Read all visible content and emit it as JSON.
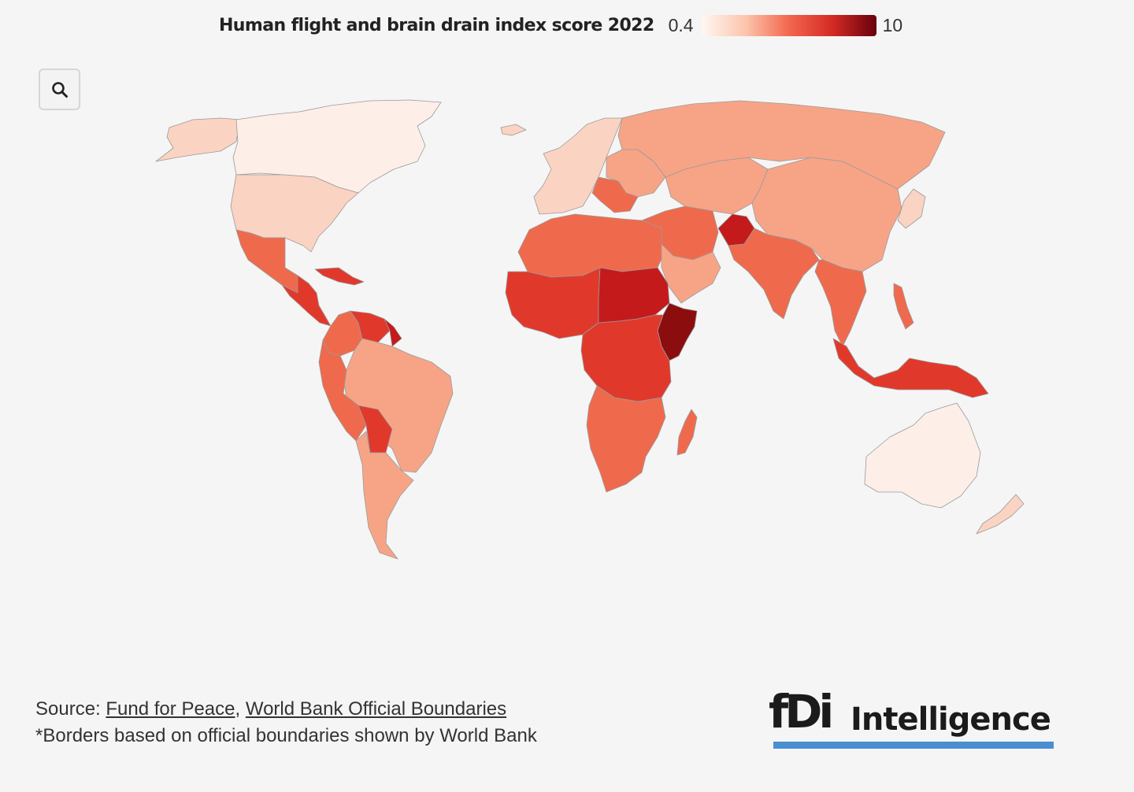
{
  "legend": {
    "title": "Human flight and brain drain index score 2022",
    "min_label": "0.4",
    "max_label": "10",
    "gradient_colors": [
      "#fff7f3",
      "#fcc5ad",
      "#f2674e",
      "#d42a24",
      "#67000d"
    ]
  },
  "zoom_button": {
    "icon": "search-icon"
  },
  "footer": {
    "source_label": "Source: ",
    "link1": "Fund for Peace",
    "separator": ", ",
    "link2": "World Bank Official Boundaries",
    "note": "*Borders based on official boundaries shown by World Bank"
  },
  "logo": {
    "mark": "fDi",
    "word": "Intelligence",
    "accent_color": "#4a8fd0"
  },
  "colors": {
    "background": "#f5f5f5",
    "border": "#9a9a9a",
    "low": "#fdeee8",
    "lowmid": "#fbd3c2",
    "mid": "#f7a486",
    "midhigh": "#ef6a4c",
    "high": "#e0392c",
    "veryhigh": "#c41a1c",
    "max": "#8c0d0e"
  },
  "map_regions": [
    {
      "name": "alaska",
      "level": "lowmid"
    },
    {
      "name": "canada",
      "level": "low"
    },
    {
      "name": "greenland",
      "level": "none"
    },
    {
      "name": "usa",
      "level": "lowmid"
    },
    {
      "name": "mexico",
      "level": "midhigh"
    },
    {
      "name": "central-america",
      "level": "high"
    },
    {
      "name": "caribbean",
      "level": "high"
    },
    {
      "name": "colombia",
      "level": "midhigh"
    },
    {
      "name": "venezuela",
      "level": "high"
    },
    {
      "name": "guyana",
      "level": "veryhigh"
    },
    {
      "name": "brazil",
      "level": "mid"
    },
    {
      "name": "peru-ecuador",
      "level": "midhigh"
    },
    {
      "name": "bolivia",
      "level": "high"
    },
    {
      "name": "southern-cone",
      "level": "mid"
    },
    {
      "name": "iceland",
      "level": "lowmid"
    },
    {
      "name": "western-europe",
      "level": "lowmid"
    },
    {
      "name": "eastern-europe",
      "level": "mid"
    },
    {
      "name": "balkans",
      "level": "midhigh"
    },
    {
      "name": "russia",
      "level": "mid"
    },
    {
      "name": "north-africa",
      "level": "midhigh"
    },
    {
      "name": "sahel",
      "level": "high"
    },
    {
      "name": "sudan-chad",
      "level": "veryhigh"
    },
    {
      "name": "horn-of-africa",
      "level": "max"
    },
    {
      "name": "central-africa",
      "level": "high"
    },
    {
      "name": "southern-africa",
      "level": "midhigh"
    },
    {
      "name": "madagascar",
      "level": "midhigh"
    },
    {
      "name": "middle-east",
      "level": "midhigh"
    },
    {
      "name": "arabian-peninsula",
      "level": "mid"
    },
    {
      "name": "central-asia",
      "level": "mid"
    },
    {
      "name": "afghanistan",
      "level": "veryhigh"
    },
    {
      "name": "south-asia",
      "level": "midhigh"
    },
    {
      "name": "china-mongolia",
      "level": "mid"
    },
    {
      "name": "japan-korea",
      "level": "lowmid"
    },
    {
      "name": "southeast-asia",
      "level": "midhigh"
    },
    {
      "name": "indonesia-png",
      "level": "high"
    },
    {
      "name": "philippines",
      "level": "midhigh"
    },
    {
      "name": "australia",
      "level": "low"
    },
    {
      "name": "new-zealand",
      "level": "lowmid"
    }
  ]
}
